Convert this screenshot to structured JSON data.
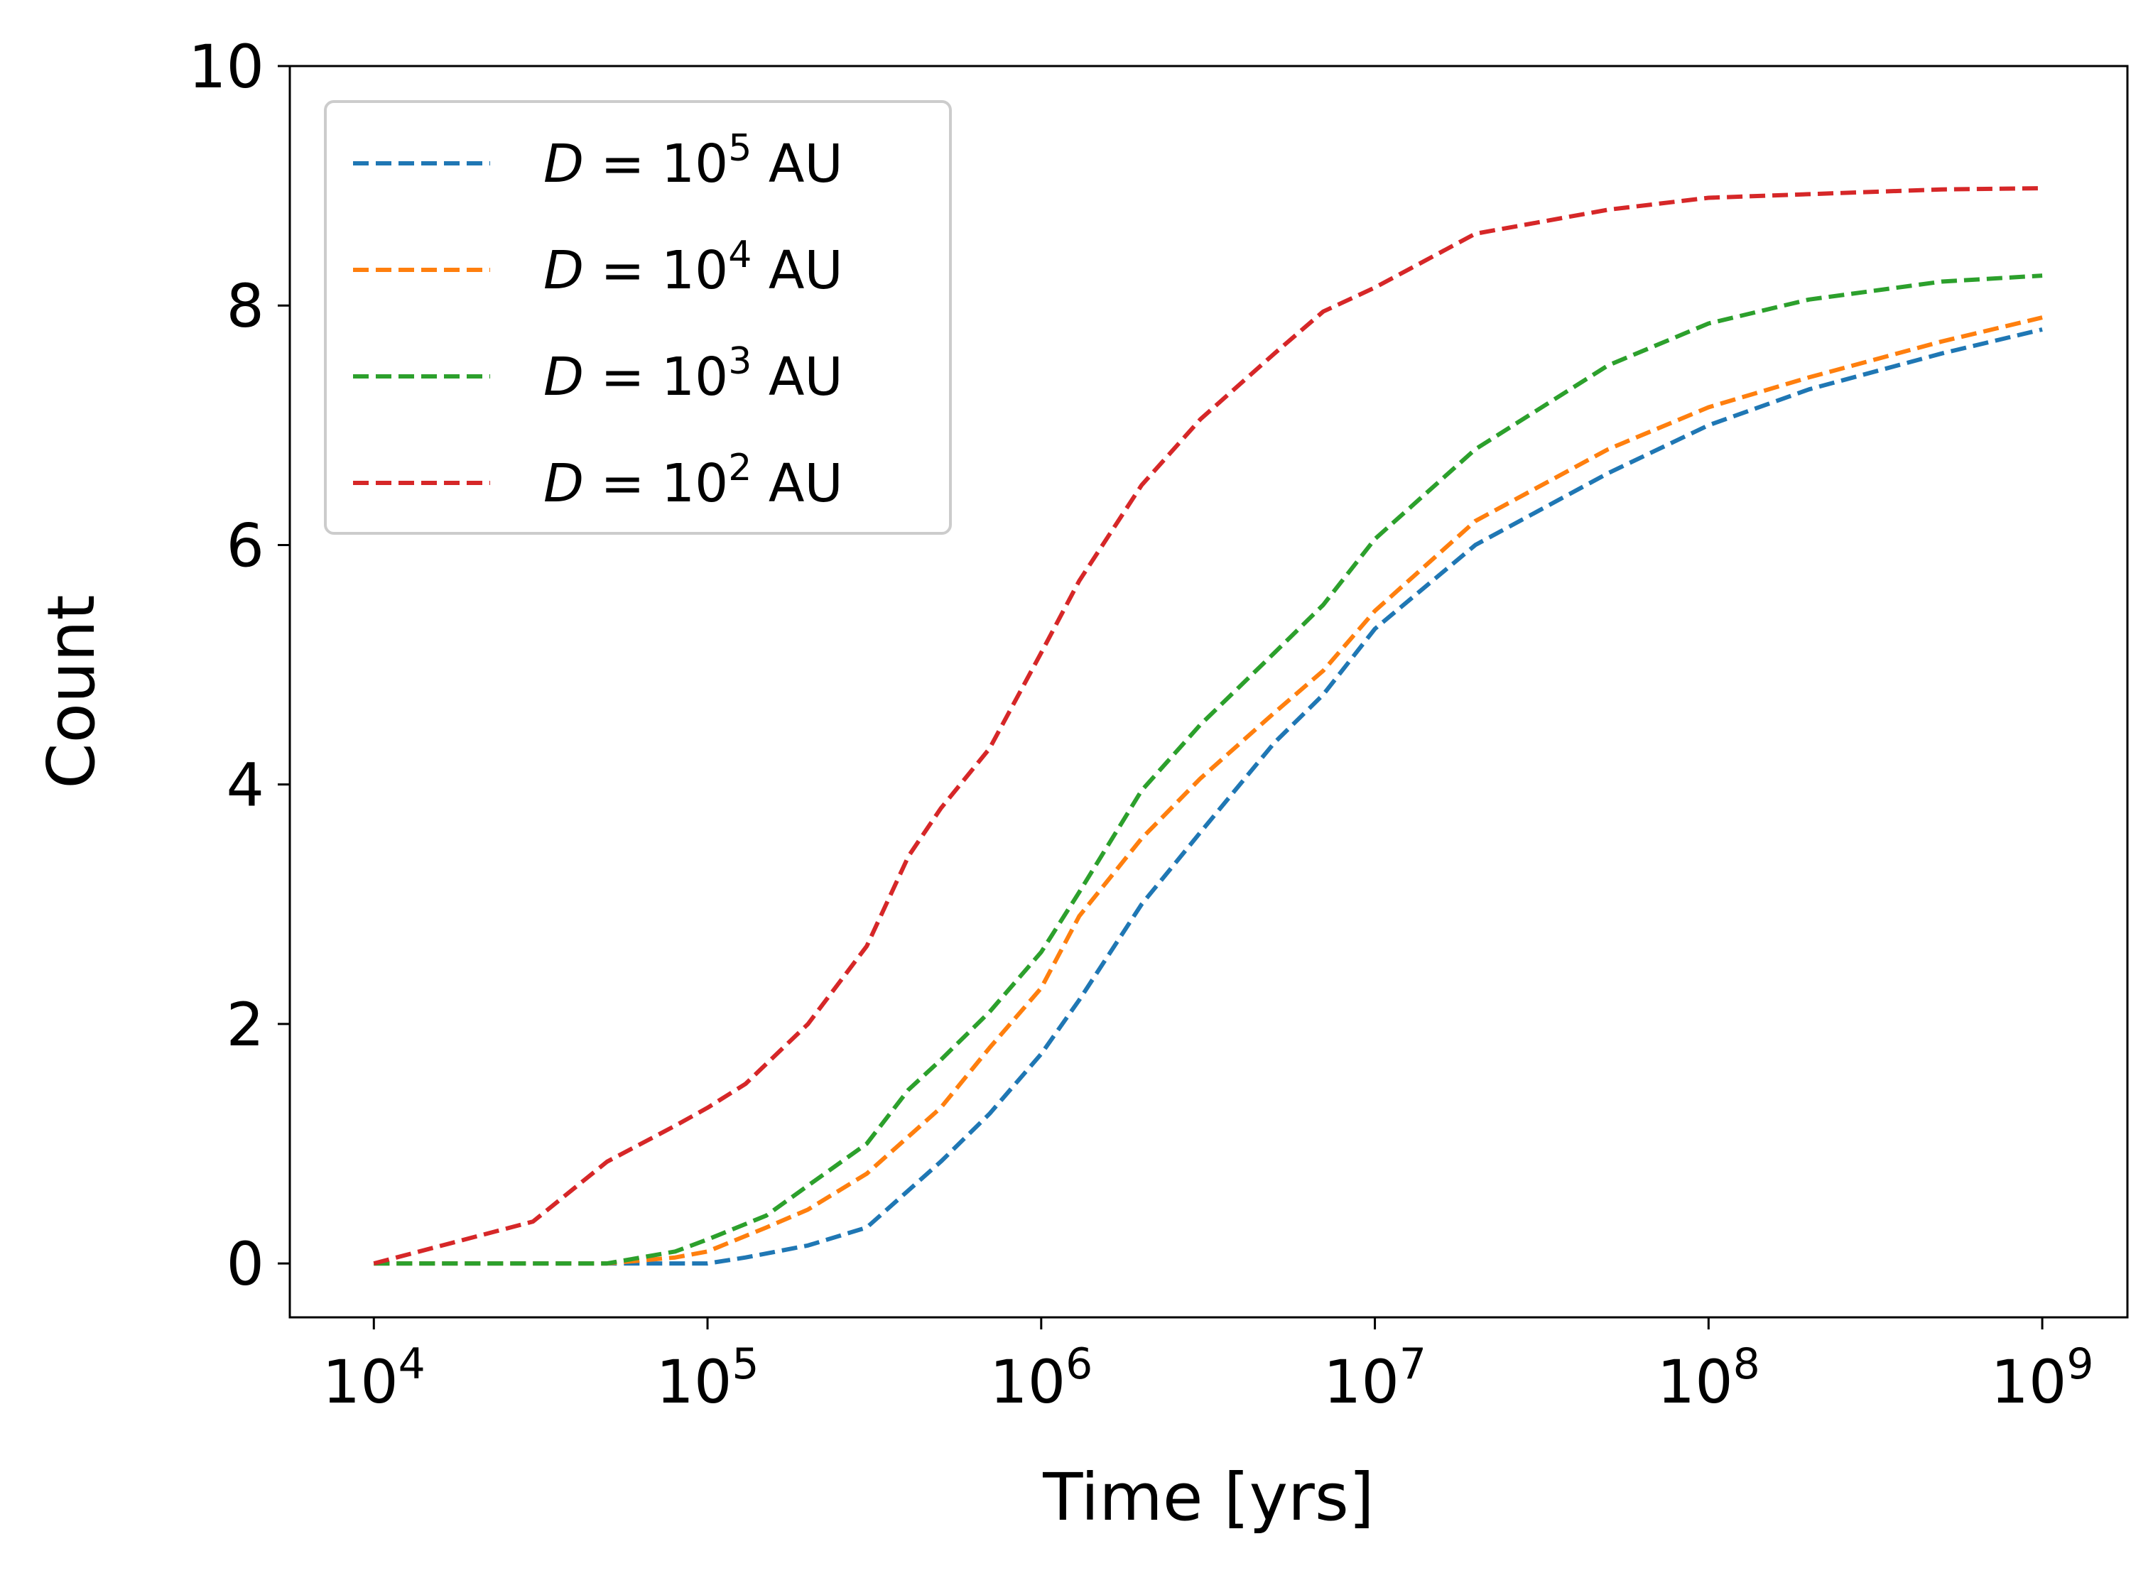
{
  "chart_data": {
    "type": "line",
    "title": "",
    "xlabel": "Time [yrs]",
    "ylabel": "Count",
    "xscale": "log",
    "xlim": [
      5600.0,
      1800000000.0
    ],
    "ylim": [
      -0.45,
      10
    ],
    "x_ticks": [
      {
        "value": 10000.0,
        "base": "10",
        "exp": "4"
      },
      {
        "value": 100000.0,
        "base": "10",
        "exp": "5"
      },
      {
        "value": 1000000.0,
        "base": "10",
        "exp": "6"
      },
      {
        "value": 10000000.0,
        "base": "10",
        "exp": "7"
      },
      {
        "value": 100000000.0,
        "base": "10",
        "exp": "8"
      },
      {
        "value": 1000000000.0,
        "base": "10",
        "exp": "9"
      }
    ],
    "y_ticks": [
      0,
      2,
      4,
      6,
      8,
      10
    ],
    "legend_position": "top-left",
    "grid": false,
    "series": [
      {
        "name": "D = 10^5 AU",
        "legend": {
          "var": "D",
          "eq": " = 10",
          "exp": "5",
          "unit": " AU"
        },
        "color": "#1f77b4",
        "style": "dashed",
        "x": [
          10000.0,
          50000.0,
          100000.0,
          130000.0,
          200000.0,
          300000.0,
          500000.0,
          700000.0,
          1000000.0,
          1300000.0,
          2000000.0,
          3000000.0,
          5000000.0,
          7000000.0,
          10000000.0,
          20000000.0,
          50000000.0,
          100000000.0,
          200000000.0,
          500000000.0,
          1000000000.0
        ],
        "values": [
          0,
          0,
          0,
          0.05,
          0.15,
          0.3,
          0.85,
          1.25,
          1.75,
          2.2,
          3.0,
          3.6,
          4.35,
          4.75,
          5.3,
          6.0,
          6.6,
          7.0,
          7.3,
          7.6,
          7.8
        ]
      },
      {
        "name": "D = 10^4 AU",
        "legend": {
          "var": "D",
          "eq": " = 10",
          "exp": "4",
          "unit": " AU"
        },
        "color": "#ff7f0e",
        "style": "dashed",
        "x": [
          10000.0,
          50000.0,
          80000.0,
          100000.0,
          150000.0,
          200000.0,
          300000.0,
          500000.0,
          700000.0,
          1000000.0,
          1300000.0,
          2000000.0,
          3000000.0,
          5000000.0,
          7000000.0,
          10000000.0,
          20000000.0,
          50000000.0,
          100000000.0,
          200000000.0,
          500000000.0,
          1000000000.0
        ],
        "values": [
          0,
          0,
          0.05,
          0.1,
          0.3,
          0.45,
          0.75,
          1.3,
          1.8,
          2.3,
          2.9,
          3.55,
          4.05,
          4.6,
          4.95,
          5.45,
          6.2,
          6.8,
          7.15,
          7.4,
          7.7,
          7.9
        ]
      },
      {
        "name": "D = 10^3 AU",
        "legend": {
          "var": "D",
          "eq": " = 10",
          "exp": "3",
          "unit": " AU"
        },
        "color": "#2ca02c",
        "style": "dashed",
        "x": [
          10000.0,
          50000.0,
          80000.0,
          100000.0,
          150000.0,
          200000.0,
          300000.0,
          400000.0,
          500000.0,
          700000.0,
          1000000.0,
          1300000.0,
          2000000.0,
          3000000.0,
          5000000.0,
          7000000.0,
          10000000.0,
          20000000.0,
          50000000.0,
          100000000.0,
          200000000.0,
          500000000.0,
          1000000000.0
        ],
        "values": [
          0,
          0,
          0.1,
          0.2,
          0.4,
          0.65,
          1.0,
          1.45,
          1.7,
          2.1,
          2.6,
          3.1,
          3.95,
          4.5,
          5.1,
          5.5,
          6.05,
          6.8,
          7.5,
          7.85,
          8.05,
          8.2,
          8.25
        ]
      },
      {
        "name": "D = 10^2 AU",
        "legend": {
          "var": "D",
          "eq": " = 10",
          "exp": "2",
          "unit": " AU"
        },
        "color": "#d62728",
        "style": "dashed",
        "x": [
          10000.0,
          30000.0,
          50000.0,
          80000.0,
          100000.0,
          130000.0,
          200000.0,
          300000.0,
          400000.0,
          500000.0,
          700000.0,
          1000000.0,
          1300000.0,
          2000000.0,
          3000000.0,
          5000000.0,
          7000000.0,
          10000000.0,
          20000000.0,
          50000000.0,
          100000000.0,
          200000000.0,
          500000000.0,
          1000000000.0
        ],
        "values": [
          0,
          0.35,
          0.85,
          1.15,
          1.3,
          1.5,
          2.0,
          2.65,
          3.4,
          3.8,
          4.3,
          5.1,
          5.7,
          6.5,
          7.05,
          7.6,
          7.95,
          8.15,
          8.6,
          8.8,
          8.9,
          8.93,
          8.97,
          8.98
        ]
      }
    ]
  }
}
